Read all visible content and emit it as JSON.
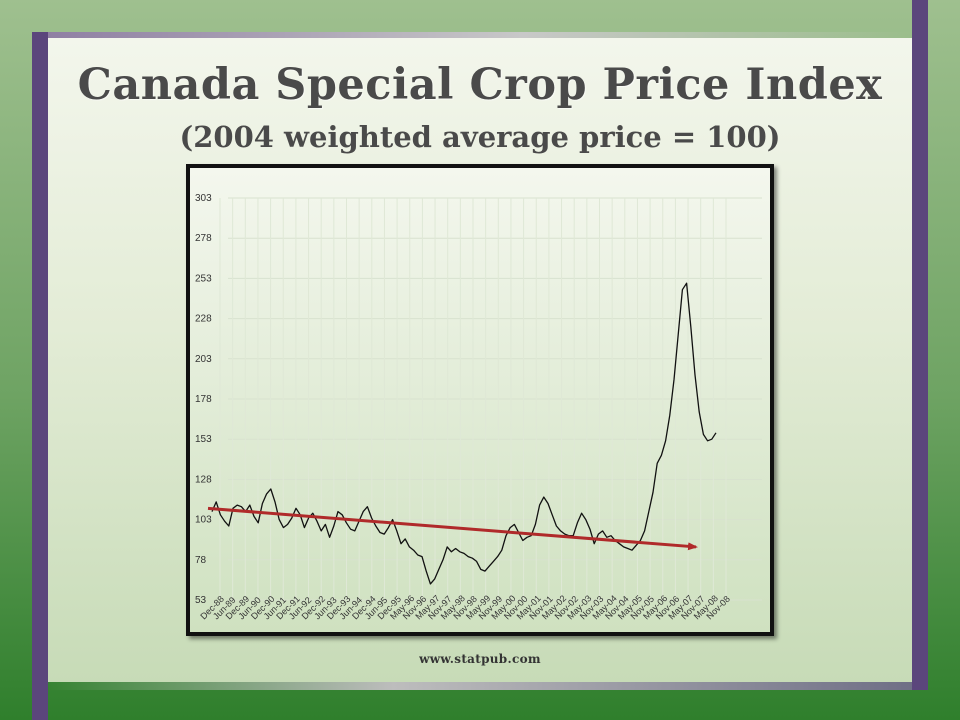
{
  "slide": {
    "title": "Canada Special Crop Price Index",
    "subtitle": "(2004 weighted average price = 100)",
    "footer": "www.statpub.com"
  },
  "colors": {
    "trend_arrow": "#b02a2a",
    "price_line": "#111111",
    "frame_accent": "#5b467c"
  },
  "chart_data": {
    "type": "line",
    "title": "Canada Special Crop Price Index",
    "subtitle": "(2004 weighted average price = 100)",
    "ylim": [
      53,
      303
    ],
    "yticks": [
      53,
      78,
      103,
      128,
      153,
      178,
      203,
      228,
      253,
      278,
      303
    ],
    "x_tick_labels": [
      "Dec-88",
      "Jun-89",
      "Dec-89",
      "Jun-90",
      "Dec-90",
      "Jun-91",
      "Dec-91",
      "Jun-92",
      "Dec-92",
      "Jun-93",
      "Dec-93",
      "Jun-94",
      "Dec-94",
      "Jun-95",
      "Dec-95",
      "May-96",
      "Nov-96",
      "May-97",
      "Nov-97",
      "May-98",
      "Nov-98",
      "May-99",
      "Nov-99",
      "May-00",
      "Nov-00",
      "May-01",
      "Nov-01",
      "May-02",
      "Nov-02",
      "May-03",
      "Nov-03",
      "May-04",
      "Nov-04",
      "May-05",
      "Nov-05",
      "May-06",
      "Nov-06",
      "May-07",
      "Nov-07",
      "May-08",
      "Nov-08"
    ],
    "grid": true,
    "series": [
      {
        "values": [
          108,
          114,
          106,
          102,
          99,
          110,
          112,
          111,
          108,
          112,
          105,
          101,
          113,
          119,
          122,
          114,
          103,
          98,
          100,
          104,
          110,
          106,
          98,
          104,
          107,
          102,
          96,
          100,
          92,
          99,
          108,
          106,
          101,
          97,
          96,
          102,
          108,
          111,
          104,
          99,
          95,
          94,
          98,
          103,
          96,
          88,
          91,
          86,
          84,
          81,
          80,
          71,
          63,
          66,
          72,
          78,
          86,
          83,
          85,
          83,
          82,
          80,
          79,
          77,
          72,
          71,
          74,
          77,
          80,
          84,
          93,
          98,
          100,
          95,
          90,
          92,
          93,
          100,
          112,
          117,
          113,
          106,
          99,
          96,
          94,
          93,
          93,
          101,
          107,
          103,
          97,
          88,
          94,
          96,
          92,
          93,
          90,
          88,
          86,
          85,
          84,
          87,
          90,
          96,
          108,
          120,
          138,
          143,
          152,
          168,
          190,
          218,
          246,
          250,
          223,
          193,
          170,
          156,
          152,
          153,
          157
        ]
      }
    ],
    "trend": {
      "start": 110,
      "end": 86
    }
  }
}
